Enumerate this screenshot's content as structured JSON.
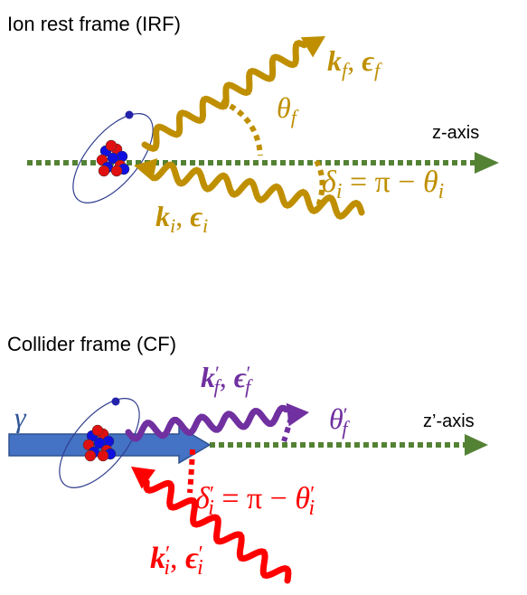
{
  "irf": {
    "title": "Ion rest frame (IRF)",
    "axis": "z-axis",
    "out_label": [
      {
        "t": "k",
        "role": "bold"
      },
      {
        "t": "f",
        "role": "sub"
      },
      {
        "t": ", ",
        "role": "plain"
      },
      {
        "t": "ϵ",
        "role": "bold"
      },
      {
        "t": "f",
        "role": "sub"
      }
    ],
    "theta": [
      {
        "t": "θ",
        "role": "italic"
      },
      {
        "t": "f",
        "role": "sub"
      }
    ],
    "in_label": [
      {
        "t": "k",
        "role": "bold"
      },
      {
        "t": "i",
        "role": "sub"
      },
      {
        "t": ", ",
        "role": "plain"
      },
      {
        "t": "ϵ",
        "role": "bold"
      },
      {
        "t": "i",
        "role": "sub"
      }
    ],
    "delta": [
      {
        "t": "δ",
        "role": "italic"
      },
      {
        "t": "i",
        "role": "sub"
      },
      {
        "t": " = π − ",
        "role": "plain"
      },
      {
        "t": "θ",
        "role": "italic"
      },
      {
        "t": "i",
        "role": "sub"
      }
    ]
  },
  "cf": {
    "title": "Collider frame (CF)",
    "axis": "z’-axis",
    "gamma": "γ",
    "out_label": [
      {
        "t": "k",
        "role": "bold"
      },
      {
        "t": "′",
        "role": "sup"
      },
      {
        "t": "f",
        "role": "sub"
      },
      {
        "t": ", ",
        "role": "plain"
      },
      {
        "t": "ϵ",
        "role": "bold"
      },
      {
        "t": "′",
        "role": "sup"
      },
      {
        "t": "f",
        "role": "sub"
      }
    ],
    "theta": [
      {
        "t": "θ",
        "role": "italic"
      },
      {
        "t": "′",
        "role": "sup"
      },
      {
        "t": "f",
        "role": "sub"
      }
    ],
    "in_label": [
      {
        "t": "k",
        "role": "bold"
      },
      {
        "t": "′",
        "role": "sup"
      },
      {
        "t": "i",
        "role": "sub"
      },
      {
        "t": ", ",
        "role": "plain"
      },
      {
        "t": "ϵ",
        "role": "bold"
      },
      {
        "t": "′",
        "role": "sup"
      },
      {
        "t": "i",
        "role": "sub"
      }
    ],
    "delta": [
      {
        "t": "δ",
        "role": "italic"
      },
      {
        "t": "′",
        "role": "sup"
      },
      {
        "t": "i",
        "role": "sub"
      },
      {
        "t": " = π − ",
        "role": "plain"
      },
      {
        "t": "θ",
        "role": "italic"
      },
      {
        "t": "′",
        "role": "sup"
      },
      {
        "t": "i",
        "role": "sub"
      }
    ]
  }
}
